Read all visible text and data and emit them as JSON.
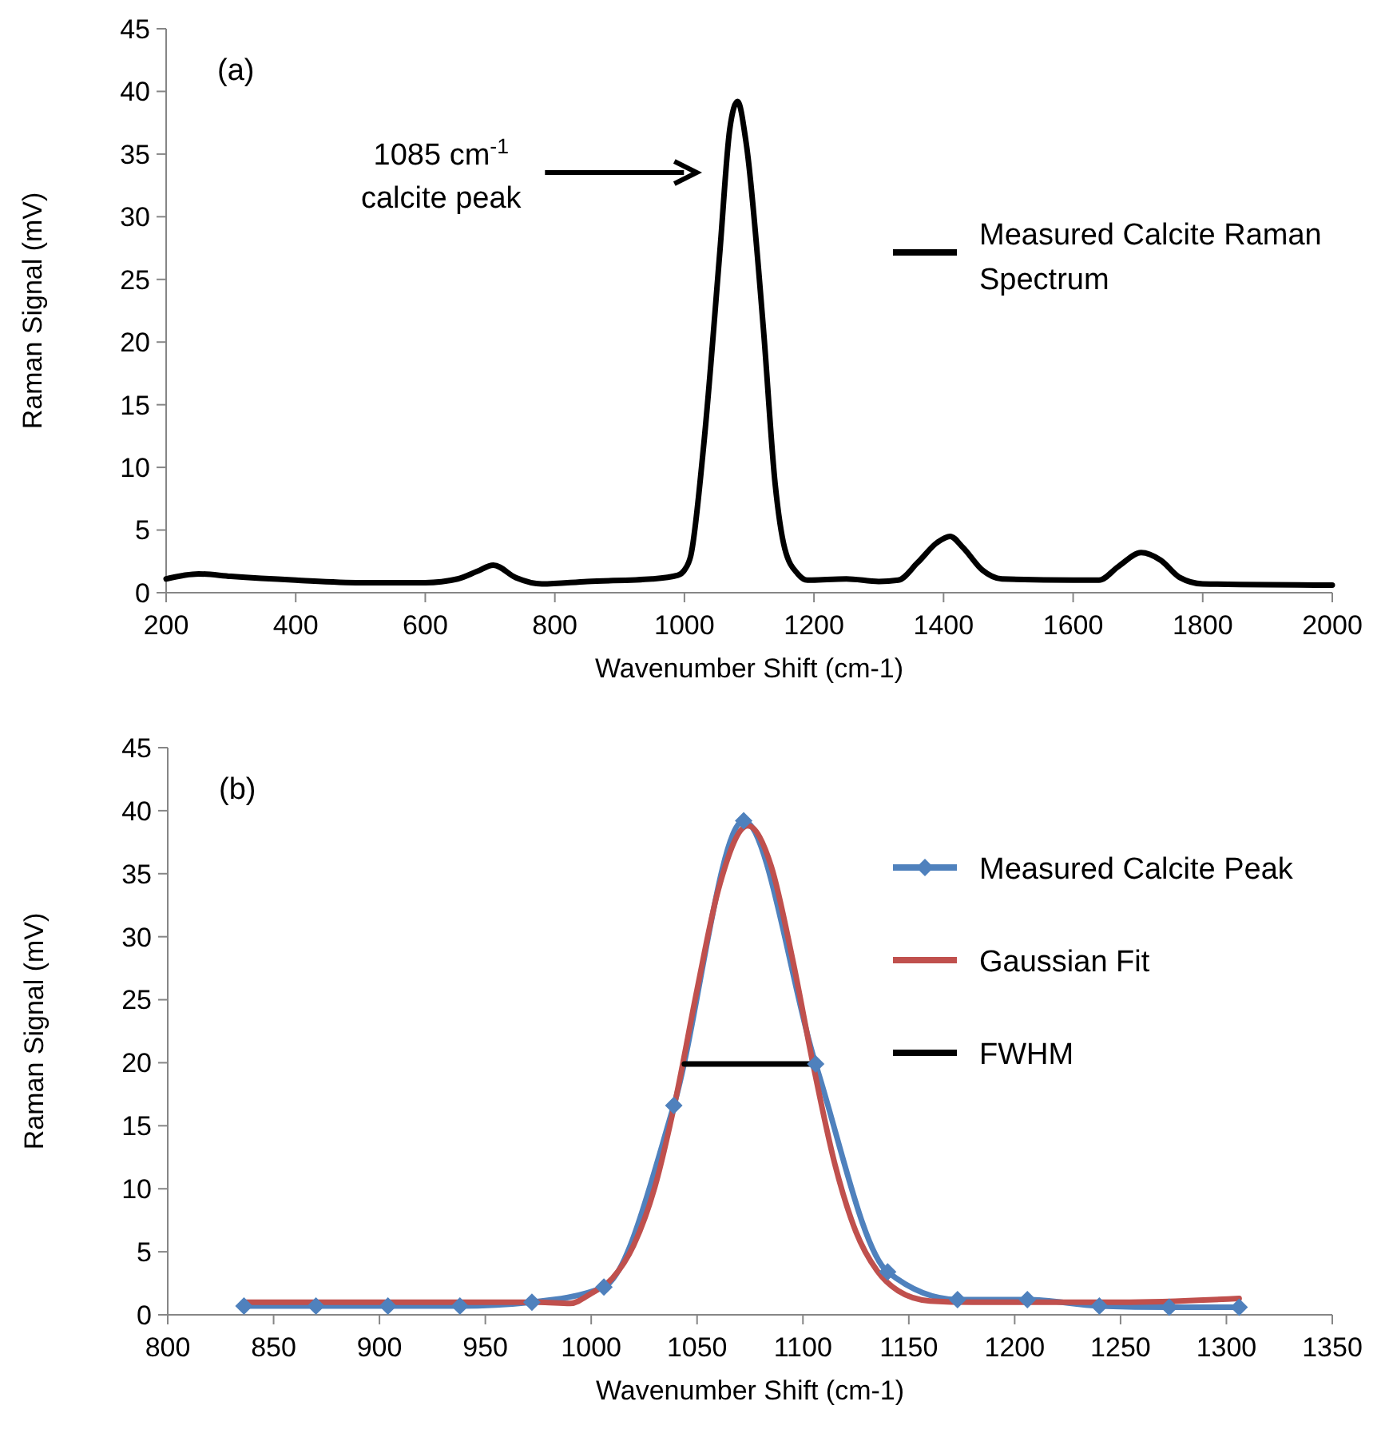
{
  "chart_data": [
    {
      "type": "line",
      "xlabel": "Wavenumber Shift (cm-1)",
      "ylabel": "Raman Signal (mV)",
      "xlim": [
        200,
        2000
      ],
      "xticks": [
        200,
        400,
        600,
        800,
        1000,
        1200,
        1400,
        1600,
        1800,
        2000
      ],
      "ylim": [
        0,
        45
      ],
      "yticks": [
        0,
        5,
        10,
        15,
        20,
        25,
        30,
        35,
        40,
        45
      ],
      "grid": false,
      "legend": "top right",
      "marker": "none",
      "line_style": "solid",
      "annotations": [
        "(a)",
        "1085 cm$^{-1}$\ncalcite peak"
      ],
      "series": [
        {
          "name": "Measured Calcite Raman Spectrum",
          "color": "#000000",
          "x": [
            200,
            250,
            300,
            400,
            500,
            600,
            650,
            680,
            705,
            740,
            780,
            850,
            950,
            990,
            1000,
            1010,
            1030,
            1055,
            1070,
            1082,
            1095,
            1122,
            1140,
            1155,
            1175,
            1190,
            1250,
            1300,
            1330,
            1360,
            1390,
            1410,
            1430,
            1460,
            1490,
            1600,
            1640,
            1670,
            1705,
            1735,
            1765,
            1800,
            2000
          ],
          "values": [
            1.1,
            1.5,
            1.3,
            1.0,
            0.8,
            0.8,
            1.1,
            1.7,
            2.2,
            1.2,
            0.7,
            0.9,
            1.1,
            1.4,
            1.8,
            3,
            11.9,
            27.4,
            37,
            39.2,
            36,
            21,
            8.7,
            3.5,
            1.5,
            1.0,
            1.1,
            0.9,
            1.0,
            2.4,
            4.0,
            4.5,
            3.6,
            1.8,
            1.1,
            1.0,
            1.0,
            2.1,
            3.2,
            2.6,
            1.2,
            0.7,
            0.6
          ]
        }
      ]
    },
    {
      "type": "line",
      "xlabel": "Wavenumber Shift (cm-1)",
      "ylabel": "Raman Signal (mV)",
      "xlim": [
        800,
        1350
      ],
      "xticks": [
        800,
        850,
        900,
        950,
        1000,
        1050,
        1100,
        1150,
        1200,
        1250,
        1300,
        1350
      ],
      "ylim": [
        0,
        45
      ],
      "yticks": [
        0,
        5,
        10,
        15,
        20,
        25,
        30,
        35,
        40,
        45
      ],
      "grid": false,
      "legend": "top right",
      "line_style": "solid",
      "annotations": [
        "(b)"
      ],
      "series": [
        {
          "name": "Measured Calcite Peak",
          "color": "#4f81bd",
          "marker": "diamond",
          "x": [
            836,
            870,
            904,
            938,
            972,
            1006,
            1039,
            1072,
            1106,
            1140,
            1173,
            1206,
            1240,
            1273,
            1306
          ],
          "values": [
            0.7,
            0.7,
            0.7,
            0.7,
            1.0,
            2.2,
            16.6,
            39.2,
            19.9,
            3.4,
            1.2,
            1.2,
            0.7,
            0.6,
            0.6
          ]
        },
        {
          "name": "Gaussian Fit",
          "color": "#c0504d",
          "marker": "none",
          "x": [
            836,
            900,
            950,
            975,
            990,
            1000,
            1010,
            1020,
            1030,
            1040,
            1050,
            1060,
            1074,
            1085,
            1095,
            1105,
            1115,
            1125,
            1135,
            1145,
            1160,
            1180,
            1250,
            1306
          ],
          "values": [
            1.0,
            1.0,
            1.0,
            1.0,
            0.9,
            1.7,
            2.9,
            5.5,
            10.1,
            17.2,
            25.8,
            33.7,
            38.8,
            35.6,
            28.3,
            19.7,
            12.0,
            6.6,
            3.5,
            1.9,
            1.1,
            1.0,
            1.0,
            1.3
          ]
        },
        {
          "name": "FWHM",
          "color": "#000000",
          "marker": "none",
          "x": [
            1044,
            1106
          ],
          "values": [
            19.9,
            19.9
          ]
        }
      ]
    }
  ]
}
